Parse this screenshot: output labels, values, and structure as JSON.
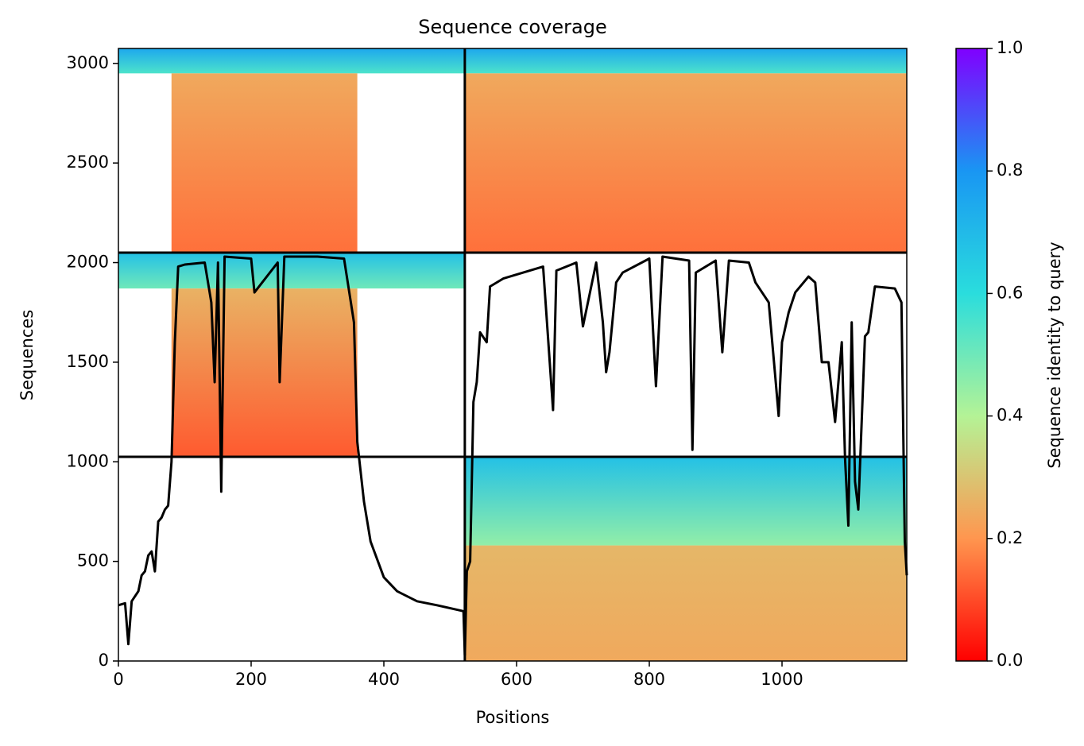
{
  "chart_data": {
    "type": "msa_coverage",
    "title": "Sequence coverage",
    "xlabel": "Positions",
    "ylabel": "Sequences",
    "colorbar_label": "Sequence identity to query",
    "xlim": [
      0,
      1188
    ],
    "ylim": [
      0,
      3075
    ],
    "xticks": [
      0,
      200,
      400,
      600,
      800,
      1000
    ],
    "yticks": [
      0,
      500,
      1000,
      1500,
      2000,
      2500,
      3000
    ],
    "clim": [
      0,
      1
    ],
    "cticks": [
      {
        "value": 0,
        "label": "0.0"
      },
      {
        "value": 0.2,
        "label": "0.2"
      },
      {
        "value": 0.4,
        "label": "0.4"
      },
      {
        "value": 0.6,
        "label": "0.6"
      },
      {
        "value": 0.8,
        "label": "0.8"
      },
      {
        "value": 1,
        "label": "1.0"
      }
    ],
    "colormap": [
      {
        "value": 0,
        "color": "#ff0000"
      },
      {
        "value": 0.2,
        "color": "#ff964f"
      },
      {
        "value": 0.4,
        "color": "#b4f396"
      },
      {
        "value": 0.6,
        "color": "#2adddd"
      },
      {
        "value": 0.8,
        "color": "#1996f3"
      },
      {
        "value": 1,
        "color": "#8000ff"
      }
    ],
    "blocks": [
      {
        "x": [
          0,
          1188
        ],
        "y": [
          2950,
          3075
        ],
        "identity": [
          0.55,
          0.75
        ]
      },
      {
        "x": [
          80,
          360
        ],
        "y": [
          2050,
          2950
        ],
        "identity": [
          0.15,
          0.24
        ]
      },
      {
        "x": [
          522,
          1188
        ],
        "y": [
          2050,
          2950
        ],
        "identity": [
          0.15,
          0.24
        ]
      },
      {
        "x": [
          0,
          522
        ],
        "y": [
          1870,
          2050
        ],
        "identity": [
          0.5,
          0.68
        ]
      },
      {
        "x": [
          80,
          360
        ],
        "y": [
          1025,
          1870
        ],
        "identity": [
          0.12,
          0.26
        ]
      },
      {
        "x": [
          522,
          1188
        ],
        "y": [
          580,
          1025
        ],
        "identity": [
          0.45,
          0.68
        ]
      },
      {
        "x": [
          522,
          1188
        ],
        "y": [
          0,
          580
        ],
        "identity": [
          0.24,
          0.27
        ]
      }
    ],
    "dividers": {
      "x": [
        522
      ],
      "y": [
        1025,
        2050
      ]
    },
    "coverage": {
      "color": "#000000",
      "x": [
        0,
        10,
        15,
        20,
        30,
        35,
        40,
        45,
        50,
        55,
        60,
        65,
        70,
        75,
        80,
        85,
        90,
        100,
        130,
        140,
        145,
        150,
        155,
        160,
        200,
        205,
        240,
        243,
        250,
        300,
        340,
        355,
        360,
        370,
        380,
        400,
        420,
        450,
        480,
        520,
        522,
        525,
        530,
        535,
        540,
        545,
        555,
        560,
        580,
        620,
        640,
        655,
        660,
        690,
        700,
        720,
        730,
        735,
        740,
        750,
        760,
        800,
        810,
        820,
        860,
        865,
        870,
        900,
        910,
        920,
        950,
        960,
        980,
        990,
        995,
        1000,
        1010,
        1020,
        1040,
        1050,
        1060,
        1070,
        1080,
        1090,
        1095,
        1100,
        1105,
        1110,
        1115,
        1125,
        1130,
        1140,
        1170,
        1180,
        1185,
        1188
      ],
      "values": [
        280,
        290,
        85,
        300,
        350,
        430,
        450,
        530,
        550,
        450,
        700,
        720,
        760,
        780,
        1000,
        1600,
        1980,
        1990,
        2000,
        1800,
        1400,
        2000,
        850,
        2030,
        2020,
        1850,
        2000,
        1400,
        2030,
        2030,
        2020,
        1700,
        1100,
        800,
        600,
        420,
        350,
        300,
        280,
        250,
        30,
        450,
        500,
        1300,
        1400,
        1650,
        1600,
        1880,
        1920,
        1960,
        1980,
        1260,
        1960,
        2000,
        1680,
        2000,
        1700,
        1450,
        1550,
        1900,
        1950,
        2020,
        1380,
        2030,
        2010,
        1060,
        1950,
        2010,
        1550,
        2010,
        2000,
        1900,
        1800,
        1420,
        1230,
        1600,
        1750,
        1850,
        1930,
        1900,
        1500,
        1500,
        1200,
        1600,
        1020,
        680,
        1700,
        900,
        760,
        1630,
        1650,
        1880,
        1870,
        1800,
        600,
        430
      ]
    }
  }
}
